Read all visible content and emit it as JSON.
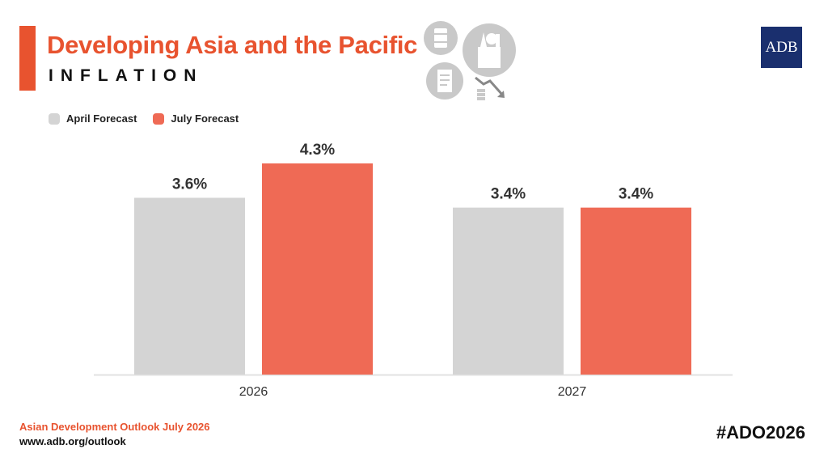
{
  "header": {
    "title": "Developing Asia and the Pacific",
    "subtitle": "INFLATION",
    "logo_text": "ADB"
  },
  "icons": [
    "oil-barrel-icon",
    "grocery-bag-icon",
    "receipt-icon",
    "price-decline-icon"
  ],
  "colors": {
    "accent": "#e8532f",
    "april": "#d4d4d4",
    "july": "#ef6a55",
    "logo_bg": "#1a2f6e"
  },
  "chart_data": {
    "type": "bar",
    "categories": [
      "2026",
      "2027"
    ],
    "series": [
      {
        "name": "April Forecast",
        "values": [
          3.6,
          3.4
        ],
        "labels": [
          "3.6%",
          "3.4%"
        ],
        "color": "#d4d4d4"
      },
      {
        "name": "July Forecast",
        "values": [
          4.3,
          3.4
        ],
        "labels": [
          "4.3%",
          "3.4%"
        ],
        "color": "#ef6a55"
      }
    ],
    "ylim": [
      0,
      4.3
    ],
    "grid": false,
    "legend": "top-left"
  },
  "footer": {
    "publication": "Asian Development Outlook July 2026",
    "url": "www.adb.org/outlook",
    "hashtag": "#ADO2026"
  }
}
